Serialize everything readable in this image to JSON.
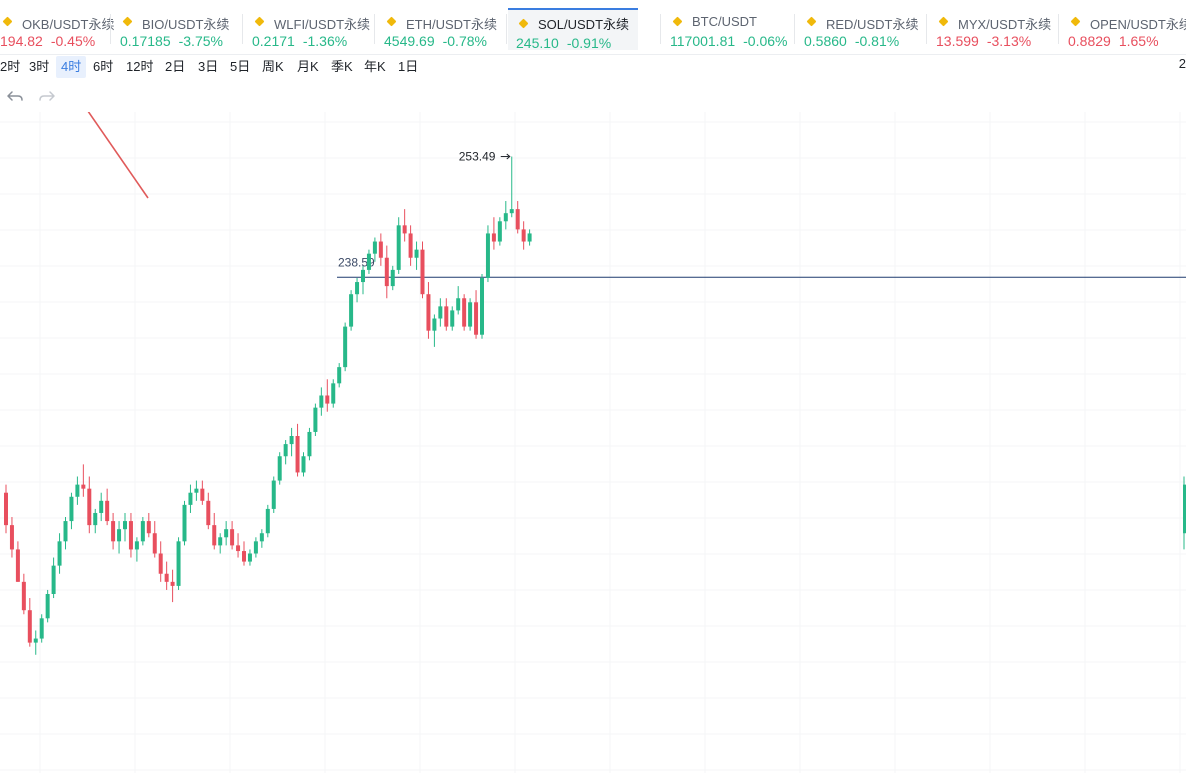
{
  "tickers": [
    {
      "name": "OKB/USDT永续",
      "price": "194.82",
      "change": "-0.45%",
      "dir": "down"
    },
    {
      "name": "BIO/USDT永续",
      "price": "0.17185",
      "change": "-3.75%",
      "dir": "up"
    },
    {
      "name": "WLFI/USDT永续",
      "price": "0.2171",
      "change": "-1.36%",
      "dir": "up"
    },
    {
      "name": "ETH/USDT永续",
      "price": "4549.69",
      "change": "-0.78%",
      "dir": "up"
    },
    {
      "name": "SOL/USDT永续",
      "price": "245.10",
      "change": "-0.91%",
      "dir": "up",
      "active": true
    },
    {
      "name": "BTC/USDT",
      "price": "117001.81",
      "change": "-0.06%",
      "dir": "up"
    },
    {
      "name": "RED/USDT永续",
      "price": "0.5860",
      "change": "-0.81%",
      "dir": "up"
    },
    {
      "name": "MYX/USDT永续",
      "price": "13.599",
      "change": "-3.13%",
      "dir": "down"
    },
    {
      "name": "OPEN/USDT永续",
      "price": "0.8829",
      "change": "1.65%",
      "dir": "down"
    }
  ],
  "intervals": [
    {
      "label": "2时"
    },
    {
      "label": "3时"
    },
    {
      "label": "4时",
      "active": true
    },
    {
      "label": "6时"
    },
    {
      "label": "12时"
    },
    {
      "label": "2日"
    },
    {
      "label": "3日"
    },
    {
      "label": "5日"
    },
    {
      "label": "周K"
    },
    {
      "label": "月K"
    },
    {
      "label": "季K"
    },
    {
      "label": "年K"
    },
    {
      "label": "1日"
    }
  ],
  "right_edge_text": "2",
  "colors": {
    "up": "#27b889",
    "down": "#e84f5e",
    "accent": "#3a7de0",
    "level_line": "#1e3a6e",
    "arrow": "#e05a5a"
  },
  "icons": {
    "undo": "undo-icon",
    "redo": "redo-icon",
    "ticker_badge": "diamond-icon"
  },
  "chart_data": {
    "type": "candlestick",
    "symbol": "SOL/USDT永续",
    "interval": "4时",
    "price_range": [
      180,
      258
    ],
    "high_marker": {
      "label": "253.49",
      "value": 253.49
    },
    "horizontal_line": {
      "label": "238.59",
      "value": 238.59
    },
    "candles": [
      [
        212,
        213,
        207,
        208
      ],
      [
        208,
        209,
        204,
        205
      ],
      [
        205,
        206,
        201,
        201
      ],
      [
        201,
        202,
        197,
        197.5
      ],
      [
        197.5,
        199,
        193,
        193.5
      ],
      [
        193.5,
        195,
        192,
        194
      ],
      [
        194,
        197,
        193.5,
        196.5
      ],
      [
        196.5,
        200,
        196,
        199.5
      ],
      [
        199.5,
        204,
        199,
        203
      ],
      [
        203,
        207,
        202,
        206
      ],
      [
        206,
        209,
        205,
        208.5
      ],
      [
        208.5,
        212,
        207.5,
        211.5
      ],
      [
        211.5,
        214,
        210.5,
        213
      ],
      [
        213,
        215.5,
        211.5,
        212.5
      ],
      [
        212.5,
        214,
        207,
        208
      ],
      [
        208,
        210,
        207,
        209.5
      ],
      [
        209.5,
        212,
        208.5,
        211
      ],
      [
        211,
        212.5,
        208,
        208.5
      ],
      [
        208.5,
        209.5,
        205,
        206
      ],
      [
        206,
        208.5,
        204.5,
        207.5
      ],
      [
        207.5,
        209.5,
        206,
        208.5
      ],
      [
        208.5,
        209.5,
        204,
        205
      ],
      [
        205,
        206.5,
        203.5,
        206
      ],
      [
        206,
        209,
        205.5,
        208.5
      ],
      [
        208.5,
        209.5,
        206.5,
        207
      ],
      [
        207,
        208.5,
        204,
        204.5
      ],
      [
        204.5,
        206,
        201,
        202
      ],
      [
        202,
        203.5,
        200,
        201
      ],
      [
        201,
        202.5,
        198.5,
        200.5
      ],
      [
        200.5,
        206.5,
        200,
        206
      ],
      [
        206,
        211,
        205.5,
        210.5
      ],
      [
        210.5,
        213,
        209.5,
        212
      ],
      [
        212,
        213.5,
        211,
        212.5
      ],
      [
        212.5,
        213.5,
        210.5,
        211
      ],
      [
        211,
        212,
        207.5,
        208
      ],
      [
        208,
        209.5,
        205,
        205.5
      ],
      [
        205.5,
        207,
        204.5,
        206.5
      ],
      [
        206.5,
        208.5,
        205.5,
        207.5
      ],
      [
        207.5,
        208.5,
        205,
        205.5
      ],
      [
        205.5,
        207,
        204,
        204.8
      ],
      [
        204.8,
        206,
        203,
        203.5
      ],
      [
        203.5,
        205,
        203,
        204.5
      ],
      [
        204.5,
        206.5,
        204,
        206
      ],
      [
        206,
        207.5,
        205.2,
        207
      ],
      [
        207,
        210.5,
        206.5,
        210
      ],
      [
        210,
        214,
        209.5,
        213.5
      ],
      [
        213.5,
        217,
        213,
        216.5
      ],
      [
        216.5,
        218.5,
        215.5,
        218
      ],
      [
        218,
        220,
        216.5,
        219
      ],
      [
        219,
        220.5,
        214,
        214.5
      ],
      [
        214.5,
        217,
        214,
        216.5
      ],
      [
        216.5,
        220,
        216,
        219.5
      ],
      [
        219.5,
        223,
        219,
        222.5
      ],
      [
        222.5,
        225,
        221.5,
        224
      ],
      [
        224,
        226,
        222,
        223
      ],
      [
        223,
        226,
        222.5,
        225.5
      ],
      [
        225.5,
        228,
        225,
        227.5
      ],
      [
        227.5,
        233,
        227,
        232.5
      ],
      [
        232.5,
        237,
        232,
        236.5
      ],
      [
        236.5,
        238.5,
        235.5,
        238
      ],
      [
        238,
        240,
        236.5,
        239.5
      ],
      [
        239.5,
        242,
        239,
        241.5
      ],
      [
        241.5,
        243.5,
        240.5,
        243
      ],
      [
        243,
        244,
        240,
        241
      ],
      [
        241,
        242.5,
        236,
        237.5
      ],
      [
        237.5,
        240,
        237,
        239.5
      ],
      [
        239.5,
        246,
        239,
        245
      ],
      [
        245,
        247,
        243,
        244
      ],
      [
        244,
        245,
        240,
        241
      ],
      [
        241,
        243,
        239.5,
        242
      ],
      [
        242,
        243,
        236,
        236.5
      ],
      [
        236.5,
        238,
        231,
        232
      ],
      [
        232,
        234,
        230,
        233.5
      ],
      [
        233.5,
        236,
        232.5,
        235
      ],
      [
        235,
        236,
        232,
        232.5
      ],
      [
        232.5,
        235,
        232,
        234.5
      ],
      [
        234.5,
        237.5,
        234,
        236
      ],
      [
        236,
        236.5,
        232,
        232.5
      ],
      [
        232.5,
        236,
        232,
        235.5
      ],
      [
        235.5,
        237,
        231,
        231.5
      ],
      [
        231.5,
        239,
        231,
        238.5
      ],
      [
        238.5,
        245,
        238,
        244
      ],
      [
        244,
        246,
        242,
        243
      ],
      [
        243,
        246,
        242.5,
        245.5
      ],
      [
        245.5,
        248,
        244.5,
        246.5
      ],
      [
        246.5,
        253.49,
        246,
        247
      ],
      [
        247,
        248,
        244,
        244.5
      ],
      [
        244.5,
        245.5,
        242,
        243
      ],
      [
        243,
        244.5,
        242.5,
        244
      ]
    ]
  }
}
